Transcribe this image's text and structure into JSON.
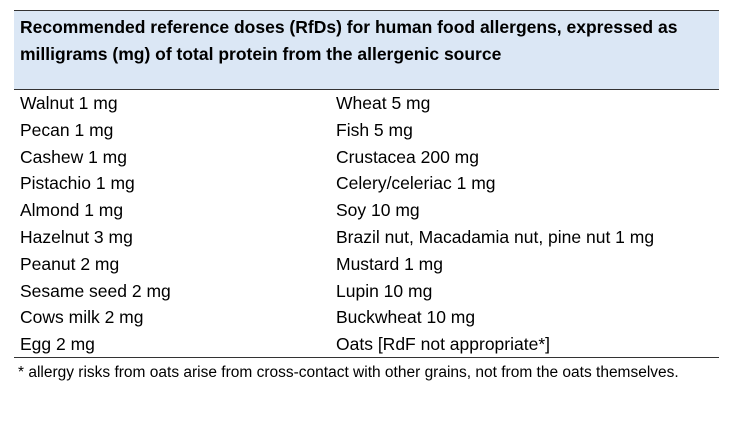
{
  "table": {
    "header": "Recommended reference doses (RfDs) for human food allergens, expressed as milligrams (mg) of total protein from the allergenic source",
    "rows": [
      {
        "left": "Walnut 1 mg",
        "right": "Wheat 5 mg"
      },
      {
        "left": "Pecan 1 mg",
        "right": "Fish 5 mg"
      },
      {
        "left": "Cashew 1 mg",
        "right": "Crustacea 200 mg"
      },
      {
        "left": "Pistachio 1 mg",
        "right": "Celery/celeriac 1 mg"
      },
      {
        "left": "Almond 1 mg",
        "right": "Soy 10 mg"
      },
      {
        "left": "Hazelnut 3 mg",
        "right": "Brazil nut, Macadamia nut, pine nut 1 mg"
      },
      {
        "left": "Peanut 2 mg",
        "right": "Mustard 1 mg"
      },
      {
        "left": "Sesame seed 2 mg",
        "right": "Lupin 10 mg"
      },
      {
        "left": "Cows milk 2 mg",
        "right": "Buckwheat 10 mg"
      },
      {
        "left": "Egg 2 mg",
        "right": "Oats [RdF not appropriate*]"
      }
    ],
    "footnote": "* allergy risks from oats arise from cross-contact with other grains, not from the oats themselves."
  },
  "colors": {
    "header_background": "#dbe7f5",
    "rule": "#333333",
    "text": "#000000"
  }
}
